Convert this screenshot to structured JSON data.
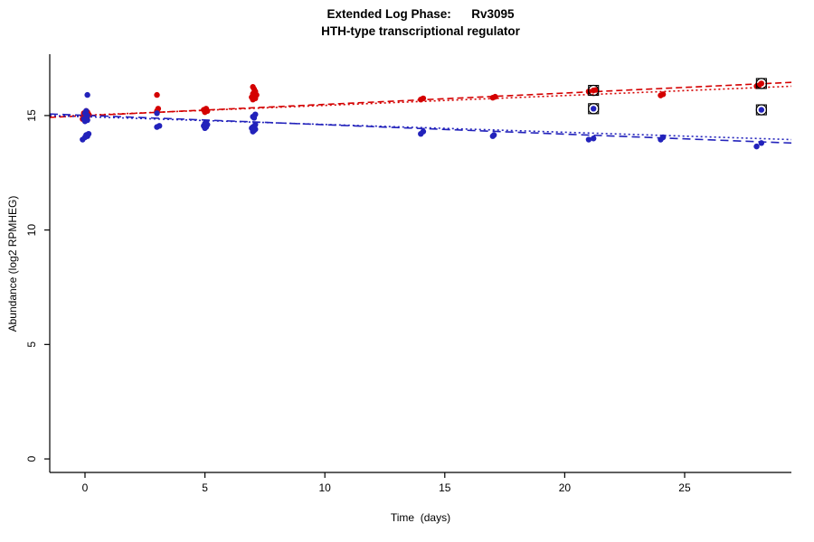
{
  "chart_data": {
    "type": "scatter",
    "title": "Extended Log Phase:      Rv3095",
    "subtitle": "HTH-type transcriptional regulator",
    "xlabel": "Time  (days)",
    "ylabel": "Abundance  (log2 RPMHEG)",
    "xlim": [
      -1.47,
      29.45
    ],
    "ylim": [
      -0.59,
      17.68
    ],
    "xticks": [
      0,
      5,
      10,
      15,
      20,
      25
    ],
    "yticks": [
      0,
      5,
      10,
      15
    ],
    "grid": false,
    "legend": "none",
    "series": [
      {
        "name": "red-series",
        "color": "#d40000",
        "points": [
          [
            -0.1,
            14.85
          ],
          [
            0,
            14.9
          ],
          [
            0.1,
            14.95
          ],
          [
            0,
            15.0
          ],
          [
            0.15,
            15.05
          ],
          [
            -0.05,
            15.1
          ],
          [
            0.1,
            15.15
          ],
          [
            0.05,
            15.2
          ],
          [
            3,
            15.2
          ],
          [
            3.05,
            15.3
          ],
          [
            3,
            15.9
          ],
          [
            5,
            15.15
          ],
          [
            5.1,
            15.2
          ],
          [
            4.95,
            15.25
          ],
          [
            5.05,
            15.3
          ],
          [
            7,
            15.7
          ],
          [
            7.1,
            15.75
          ],
          [
            6.95,
            15.8
          ],
          [
            7.05,
            15.85
          ],
          [
            7.15,
            15.9
          ],
          [
            7,
            15.95
          ],
          [
            7.1,
            16.05
          ],
          [
            7.05,
            16.15
          ],
          [
            7,
            16.25
          ],
          [
            14,
            15.7
          ],
          [
            14.1,
            15.75
          ],
          [
            17,
            15.78
          ],
          [
            17.1,
            15.82
          ],
          [
            21,
            16.05
          ],
          [
            21.2,
            16.1
          ],
          [
            21.3,
            16.12
          ],
          [
            24,
            15.88
          ],
          [
            24.1,
            15.93
          ],
          [
            28,
            16.28
          ],
          [
            28.1,
            16.32
          ],
          [
            28.2,
            16.4
          ]
        ]
      },
      {
        "name": "blue-series",
        "color": "#2222bb",
        "points": [
          [
            -0.1,
            13.95
          ],
          [
            0,
            14.05
          ],
          [
            0.1,
            14.1
          ],
          [
            0.05,
            14.15
          ],
          [
            0.15,
            14.2
          ],
          [
            0,
            14.75
          ],
          [
            0.1,
            14.8
          ],
          [
            -0.05,
            14.85
          ],
          [
            0.05,
            14.9
          ],
          [
            0.1,
            15.0
          ],
          [
            0,
            15.1
          ],
          [
            0.05,
            15.2
          ],
          [
            0.1,
            15.9
          ],
          [
            3,
            14.5
          ],
          [
            3.1,
            14.55
          ],
          [
            3,
            15.1
          ],
          [
            5,
            14.45
          ],
          [
            5.05,
            14.5
          ],
          [
            4.95,
            14.55
          ],
          [
            5.1,
            14.6
          ],
          [
            5,
            14.65
          ],
          [
            5.05,
            14.7
          ],
          [
            7,
            14.3
          ],
          [
            7.05,
            14.35
          ],
          [
            7.1,
            14.4
          ],
          [
            6.95,
            14.45
          ],
          [
            7,
            14.5
          ],
          [
            7.1,
            14.6
          ],
          [
            7.05,
            14.9
          ],
          [
            7,
            14.95
          ],
          [
            7.1,
            15.05
          ],
          [
            14,
            14.2
          ],
          [
            14.1,
            14.3
          ],
          [
            17,
            14.1
          ],
          [
            17.05,
            14.15
          ],
          [
            21,
            13.95
          ],
          [
            21.2,
            14.0
          ],
          [
            21.2,
            15.3
          ],
          [
            24,
            13.95
          ],
          [
            24.1,
            14.05
          ],
          [
            28,
            13.65
          ],
          [
            28.2,
            13.8
          ],
          [
            28.2,
            15.25
          ]
        ]
      }
    ],
    "trend_lines": [
      {
        "series": "red-series",
        "color": "#d40000",
        "dash": "7 4",
        "x": [
          -1.47,
          29.45
        ],
        "y": [
          14.92,
          16.45
        ]
      },
      {
        "series": "red-series",
        "color": "#d40000",
        "dash": "2 3",
        "x": [
          -1.47,
          29.45
        ],
        "y": [
          14.95,
          16.28
        ]
      },
      {
        "series": "blue-series",
        "color": "#2222bb",
        "dash": "9 5",
        "x": [
          -1.47,
          29.45
        ],
        "y": [
          15.07,
          13.8
        ]
      },
      {
        "series": "blue-series",
        "color": "#2222bb",
        "dash": "2 3",
        "x": [
          -1.47,
          29.45
        ],
        "y": [
          15.0,
          13.95
        ]
      }
    ],
    "flagged_points": [
      {
        "x": 21.2,
        "y": 16.1,
        "series": "red-series"
      },
      {
        "x": 21.2,
        "y": 15.3,
        "series": "blue-series"
      },
      {
        "x": 28.2,
        "y": 16.4,
        "series": "red-series"
      },
      {
        "x": 28.2,
        "y": 15.25,
        "series": "blue-series"
      }
    ],
    "flag_marker_color": "#000000",
    "axis_color": "#000000"
  }
}
